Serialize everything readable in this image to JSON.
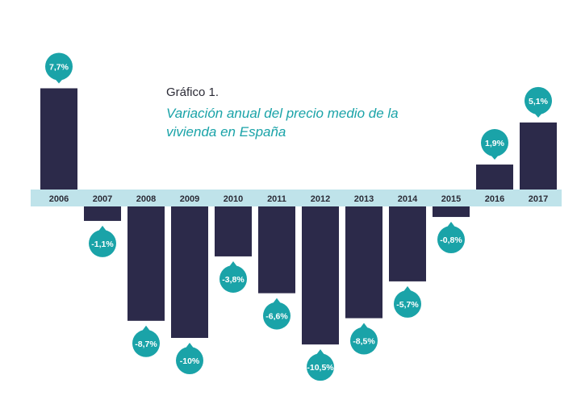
{
  "chart_data": {
    "type": "bar",
    "title": "Gráfico 1.",
    "subtitle": "Variación anual del precio medio de la vivienda en España",
    "categories": [
      "2006",
      "2007",
      "2008",
      "2009",
      "2010",
      "2011",
      "2012",
      "2013",
      "2014",
      "2015",
      "2016",
      "2017"
    ],
    "values": [
      7.7,
      -1.1,
      -8.7,
      -10,
      -3.8,
      -6.6,
      -10.5,
      -8.5,
      -5.7,
      -0.8,
      1.9,
      5.1
    ],
    "data_labels": [
      "7,7%",
      "-1,1%",
      "-8,7%",
      "-10%",
      "-3,8%",
      "-6,6%",
      "-10,5%",
      "-8,5%",
      "-5,7%",
      "-0,8%",
      "1,9%",
      "5,1%"
    ],
    "unit": "%",
    "xlabel": "",
    "ylabel": "",
    "grid": false,
    "legend": "none",
    "colors": {
      "bar": "#2c2a4a",
      "axis_band": "#bfe3ea",
      "badge": "#1aa3a8",
      "badge_text": "#ffffff",
      "title": "#2b2b36",
      "subtitle": "#1aa3a8"
    }
  }
}
